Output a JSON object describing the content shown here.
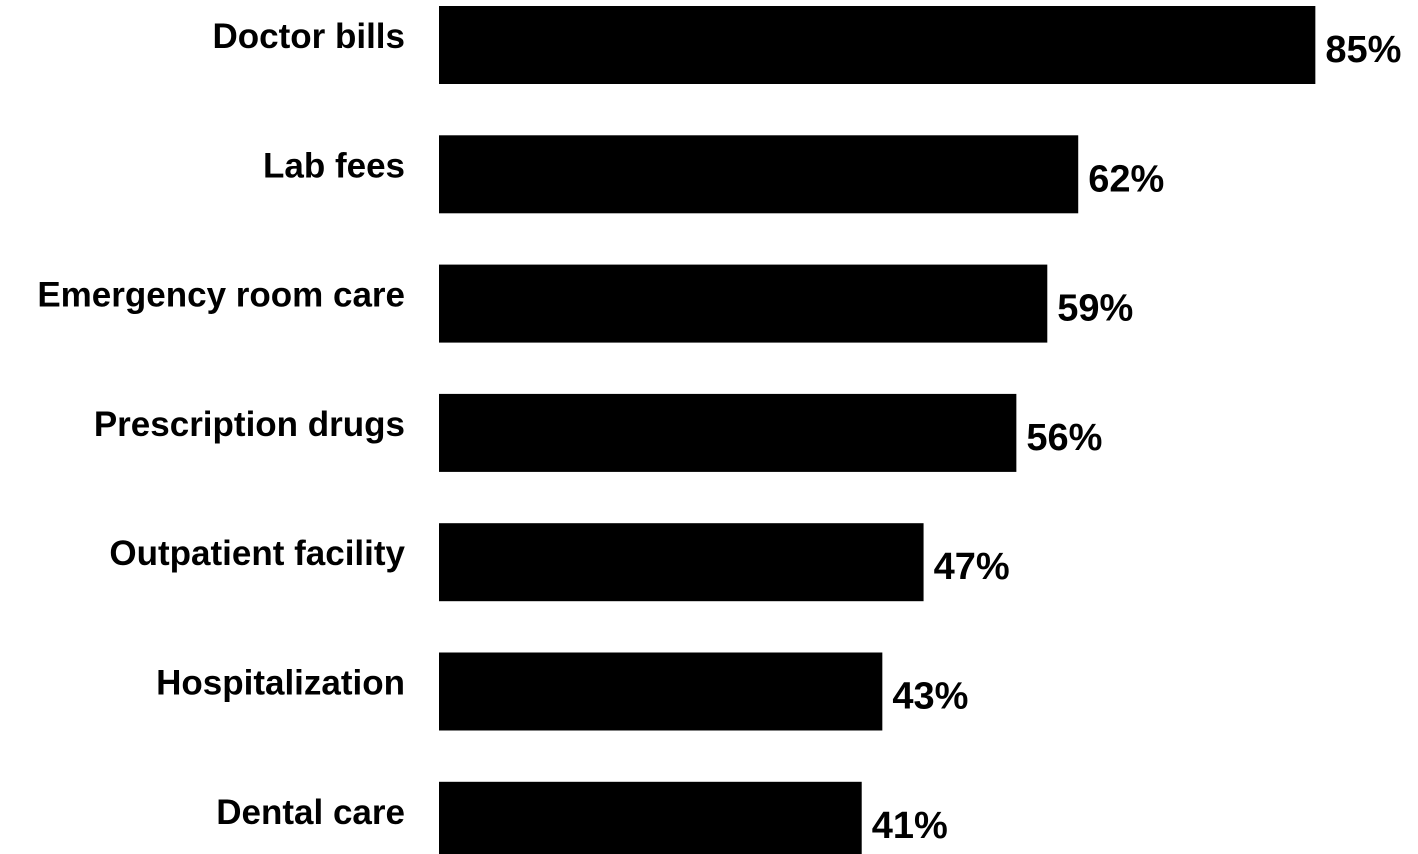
{
  "chart_data": {
    "type": "bar",
    "orientation": "horizontal",
    "title": "",
    "xlabel": "",
    "ylabel": "",
    "unit": "%",
    "categories": [
      "Doctor bills",
      "Lab fees",
      "Emergency room care",
      "Prescription drugs",
      "Outpatient facility",
      "Hospitalization",
      "Dental care"
    ],
    "values": [
      85,
      62,
      59,
      56,
      47,
      43,
      41
    ],
    "value_labels": [
      "85%",
      "62%",
      "59%",
      "56%",
      "47%",
      "43%",
      "41%"
    ],
    "xlim": [
      0,
      85
    ],
    "bar_color": "#000000",
    "grid": false,
    "legend": "none"
  }
}
